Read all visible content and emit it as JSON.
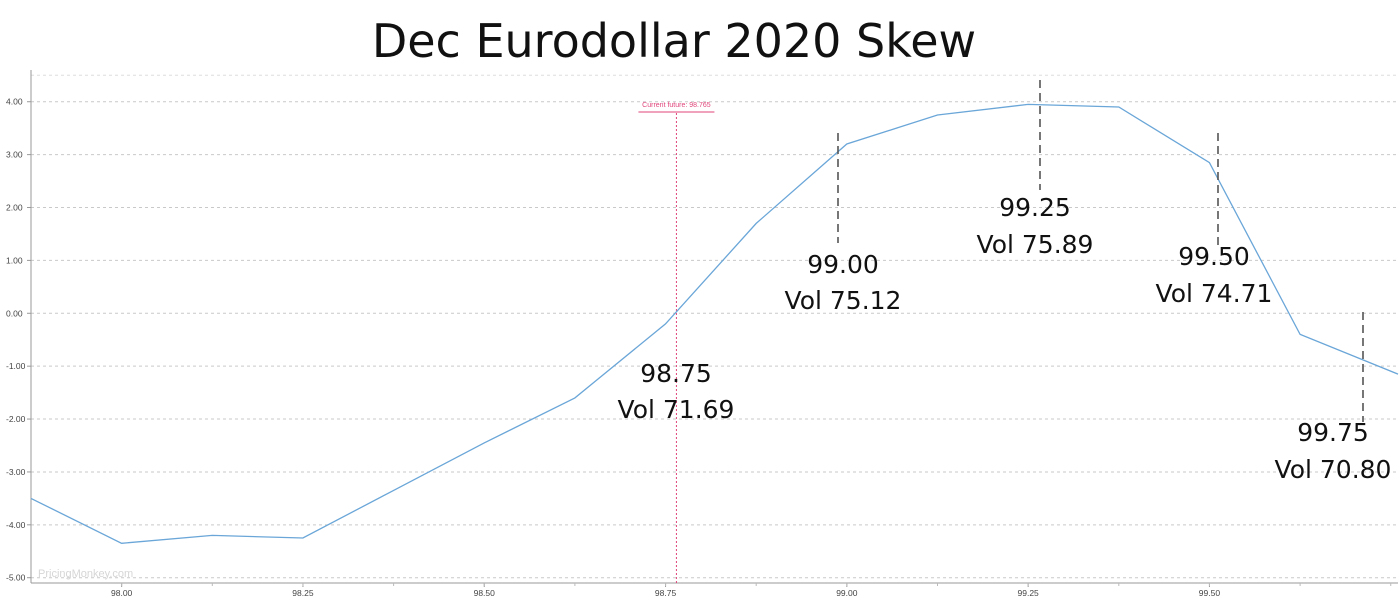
{
  "chart_data": {
    "type": "line",
    "title": "Dec Eurodollar 2020 Skew",
    "xlabel": "",
    "ylabel": "",
    "xlim": [
      97.875,
      99.76
    ],
    "ylim": [
      -5.1,
      4.6
    ],
    "grid": true,
    "x_ticks": [
      "98.00",
      "98.25",
      "98.50",
      "98.75",
      "99.00",
      "99.25",
      "99.50"
    ],
    "y_ticks": [
      "4.00",
      "3.00",
      "2.00",
      "1.00",
      "0.00",
      "-1.00",
      "-2.00",
      "-3.00",
      "-4.00",
      "-5.00"
    ],
    "series": [
      {
        "color": "#6aa6d8",
        "x": [
          97.875,
          98.0,
          98.125,
          98.25,
          98.375,
          98.5,
          98.625,
          98.75,
          98.875,
          99.0,
          99.125,
          99.25,
          99.375,
          99.5,
          99.625,
          99.76
        ],
        "y": [
          -3.5,
          -4.35,
          -4.2,
          -4.25,
          -3.35,
          -2.45,
          -1.6,
          -0.2,
          1.7,
          3.2,
          3.75,
          3.95,
          3.9,
          2.85,
          -0.4,
          -1.15
        ]
      }
    ],
    "current_future": {
      "label": "Current future: 98.765",
      "value": 98.765,
      "color": "#e0457b"
    },
    "annotations": [
      {
        "strike": "98.75",
        "vol": "Vol 71.69"
      },
      {
        "strike": "99.00",
        "vol": "Vol 75.12"
      },
      {
        "strike": "99.25",
        "vol": "Vol 75.89"
      },
      {
        "strike": "99.50",
        "vol": "Vol 74.71"
      },
      {
        "strike": "99.75",
        "vol": "Vol 70.80"
      }
    ],
    "watermark": "PricingMonkey.com"
  }
}
